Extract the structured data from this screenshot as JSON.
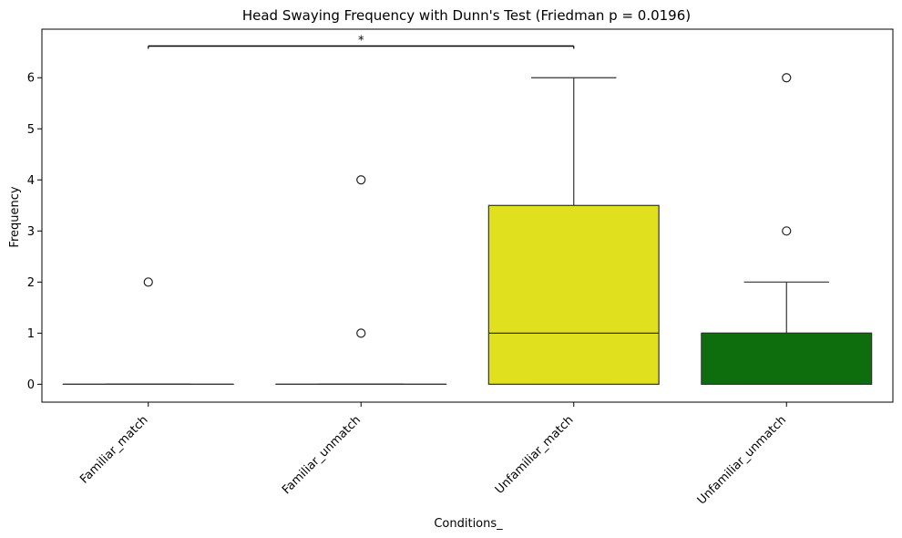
{
  "chart_data": {
    "type": "box",
    "title": "Head Swaying Frequency with Dunn's Test (Friedman p = 0.0196)",
    "xlabel": "Conditions_",
    "ylabel": "Frequency",
    "ylim": [
      -0.35,
      6.95
    ],
    "yticks": [
      "0",
      "1",
      "2",
      "3",
      "4",
      "5",
      "6"
    ],
    "grid": false,
    "categories": [
      "Familiar_match",
      "Familiar_unmatch",
      "Unfamiliar_match",
      "Unfamiliar_unmatch"
    ],
    "boxes": [
      {
        "q1": 0,
        "median": 0,
        "q3": 0,
        "whisker_low": 0,
        "whisker_high": 0,
        "outliers": [
          2
        ],
        "color": "#4c9ed9"
      },
      {
        "q1": 0,
        "median": 0,
        "q3": 0,
        "whisker_low": 0,
        "whisker_high": 0,
        "outliers": [
          1,
          4
        ],
        "color": "#e6781e"
      },
      {
        "q1": 0,
        "median": 1,
        "q3": 3.5,
        "whisker_low": 0,
        "whisker_high": 6,
        "outliers": [],
        "color": "#e0e01e"
      },
      {
        "q1": 0,
        "median": 1,
        "q3": 1,
        "whisker_low": 0,
        "whisker_high": 2,
        "outliers": [
          3,
          6
        ],
        "color": "#0e6e0e"
      }
    ],
    "annotations": [
      {
        "from": 0,
        "to": 2,
        "y": 6.62,
        "text": "*"
      }
    ]
  }
}
